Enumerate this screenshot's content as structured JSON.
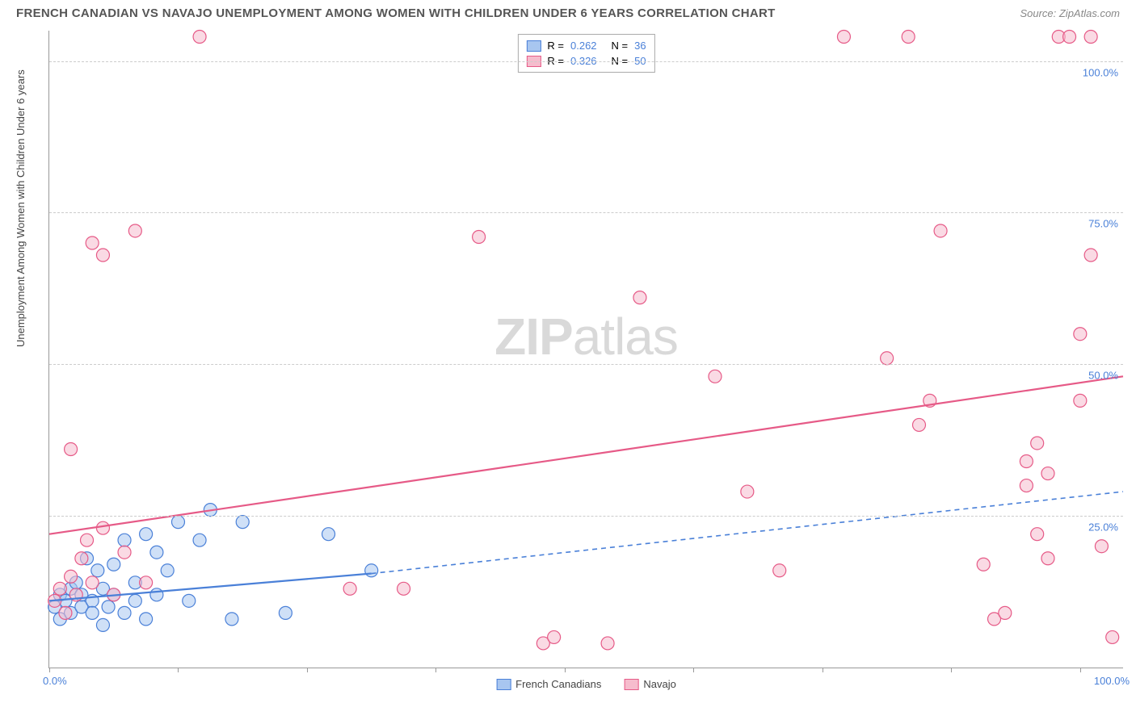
{
  "header": {
    "title": "FRENCH CANADIAN VS NAVAJO UNEMPLOYMENT AMONG WOMEN WITH CHILDREN UNDER 6 YEARS CORRELATION CHART",
    "source": "Source: ZipAtlas.com"
  },
  "chart": {
    "type": "scatter",
    "ylabel": "Unemployment Among Women with Children Under 6 years",
    "watermark_a": "ZIP",
    "watermark_b": "atlas",
    "xlim": [
      0,
      100
    ],
    "ylim": [
      0,
      105
    ],
    "xtick_label_left": "0.0%",
    "xtick_label_right": "100.0%",
    "yticks": [
      {
        "v": 25,
        "label": "25.0%"
      },
      {
        "v": 50,
        "label": "50.0%"
      },
      {
        "v": 75,
        "label": "75.0%"
      },
      {
        "v": 100,
        "label": "100.0%"
      }
    ],
    "xticks_minor": [
      0,
      12,
      24,
      36,
      48,
      60,
      72,
      84,
      96
    ],
    "background_color": "#ffffff",
    "grid_color": "#cccccc",
    "axis_color": "#999999",
    "marker_radius": 8,
    "marker_stroke_width": 1.2,
    "trend_line_width": 2.2,
    "series": [
      {
        "key": "french",
        "label": "French Canadians",
        "fill": "#a8c6f0",
        "stroke": "#4a80d8",
        "fill_opacity": 0.55,
        "r_value": "0.262",
        "n_value": "36",
        "trend": {
          "x1": 0,
          "y1": 11,
          "x2_solid": 30,
          "y2_solid": 15.5,
          "x2": 100,
          "y2": 29,
          "dash": "6,5"
        },
        "points": [
          [
            0.5,
            10
          ],
          [
            1,
            12
          ],
          [
            1,
            8
          ],
          [
            1.5,
            11
          ],
          [
            2,
            13
          ],
          [
            2,
            9
          ],
          [
            2.5,
            14
          ],
          [
            3,
            10
          ],
          [
            3,
            12
          ],
          [
            3.5,
            18
          ],
          [
            4,
            11
          ],
          [
            4,
            9
          ],
          [
            4.5,
            16
          ],
          [
            5,
            13
          ],
          [
            5,
            7
          ],
          [
            5.5,
            10
          ],
          [
            6,
            17
          ],
          [
            6,
            12
          ],
          [
            7,
            21
          ],
          [
            7,
            9
          ],
          [
            8,
            14
          ],
          [
            8,
            11
          ],
          [
            9,
            22
          ],
          [
            9,
            8
          ],
          [
            10,
            19
          ],
          [
            10,
            12
          ],
          [
            11,
            16
          ],
          [
            12,
            24
          ],
          [
            13,
            11
          ],
          [
            14,
            21
          ],
          [
            15,
            26
          ],
          [
            17,
            8
          ],
          [
            18,
            24
          ],
          [
            22,
            9
          ],
          [
            26,
            22
          ],
          [
            30,
            16
          ]
        ]
      },
      {
        "key": "navajo",
        "label": "Navajo",
        "fill": "#f6bccd",
        "stroke": "#e65a87",
        "fill_opacity": 0.55,
        "r_value": "0.326",
        "n_value": "50",
        "trend": {
          "x1": 0,
          "y1": 22,
          "x2_solid": 100,
          "y2_solid": 48,
          "x2": 100,
          "y2": 48,
          "dash": null
        },
        "points": [
          [
            0.5,
            11
          ],
          [
            1,
            13
          ],
          [
            1.5,
            9
          ],
          [
            2,
            15
          ],
          [
            2,
            36
          ],
          [
            2.5,
            12
          ],
          [
            3,
            18
          ],
          [
            3.5,
            21
          ],
          [
            4,
            70
          ],
          [
            4,
            14
          ],
          [
            5,
            68
          ],
          [
            5,
            23
          ],
          [
            6,
            12
          ],
          [
            7,
            19
          ],
          [
            8,
            72
          ],
          [
            9,
            14
          ],
          [
            14,
            104
          ],
          [
            28,
            13
          ],
          [
            33,
            13
          ],
          [
            40,
            71
          ],
          [
            46,
            4
          ],
          [
            47,
            5
          ],
          [
            52,
            4
          ],
          [
            55,
            61
          ],
          [
            62,
            48
          ],
          [
            65,
            29
          ],
          [
            68,
            16
          ],
          [
            74,
            104
          ],
          [
            78,
            51
          ],
          [
            80,
            104
          ],
          [
            81,
            40
          ],
          [
            82,
            44
          ],
          [
            83,
            72
          ],
          [
            87,
            17
          ],
          [
            88,
            8
          ],
          [
            89,
            9
          ],
          [
            91,
            30
          ],
          [
            91,
            34
          ],
          [
            92,
            22
          ],
          [
            92,
            37
          ],
          [
            93,
            18
          ],
          [
            93,
            32
          ],
          [
            94,
            104
          ],
          [
            95,
            104
          ],
          [
            96,
            55
          ],
          [
            96,
            44
          ],
          [
            97,
            68
          ],
          [
            97,
            104
          ],
          [
            98,
            20
          ],
          [
            99,
            5
          ]
        ]
      }
    ],
    "legend_top_labels": {
      "r_prefix": "R =",
      "n_prefix": "N ="
    }
  }
}
